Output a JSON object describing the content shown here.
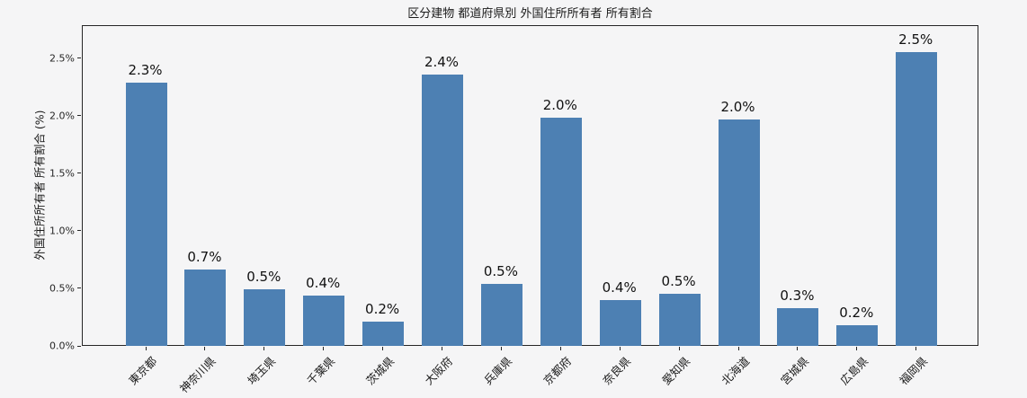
{
  "chart_data": {
    "type": "bar",
    "title": "区分建物 都道府県別 外国住所所有者 所有割合",
    "xlabel": "",
    "ylabel": "外国住所所有者 所有割合 (%)",
    "categories": [
      "東京都",
      "神奈川県",
      "埼玉県",
      "千葉県",
      "茨城県",
      "大阪府",
      "兵庫県",
      "京都府",
      "奈良県",
      "愛知県",
      "北海道",
      "宮城県",
      "広島県",
      "福岡県"
    ],
    "values": [
      2.29,
      0.66,
      0.49,
      0.44,
      0.21,
      2.36,
      0.54,
      1.98,
      0.4,
      0.45,
      1.97,
      0.33,
      0.18,
      2.55
    ],
    "bar_labels": [
      "2.3%",
      "0.7%",
      "0.5%",
      "0.4%",
      "0.2%",
      "2.4%",
      "0.5%",
      "2.0%",
      "0.4%",
      "0.5%",
      "2.0%",
      "0.3%",
      "0.2%",
      "2.5%"
    ],
    "ytick_labels": [
      "0.0%",
      "0.5%",
      "1.0%",
      "1.5%",
      "2.0%",
      "2.5%"
    ],
    "ytick_values": [
      0,
      0.5,
      1.0,
      1.5,
      2.0,
      2.5
    ],
    "ylim": [
      0,
      2.78
    ],
    "grid": false,
    "legend": null,
    "bar_color": "#4d80b3",
    "background_color": "#f5f5f6",
    "frame_color": "#262626",
    "text_color": "#1a1a1a"
  }
}
